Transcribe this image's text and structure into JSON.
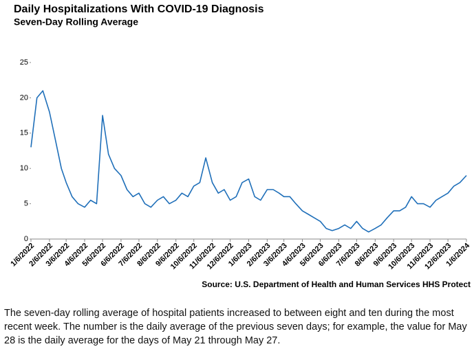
{
  "chart_data": {
    "type": "line",
    "title": "Daily Hospitalizations With COVID-19 Diagnosis",
    "subtitle": "Seven-Day Rolling Average",
    "source": "Source: U.S. Department of Health and Human Services HHS Protect",
    "note": "The seven-day rolling average of hospital patients increased to between eight and ten during the most recent week. The number is the daily average of the previous seven days; for example, the value for May 28 is the daily average for the days of May 21 through May 27.",
    "color": "#1f6fb9",
    "ylim": [
      0,
      25
    ],
    "yticks": [
      0,
      5,
      10,
      15,
      20,
      25
    ],
    "xlim": [
      "1/6/2022",
      "1/6/2024"
    ],
    "xticks": [
      "1/6/2022",
      "2/6/2022",
      "3/6/2022",
      "4/6/2022",
      "5/6/2022",
      "6/6/2022",
      "7/6/2022",
      "8/6/2022",
      "9/6/2022",
      "10/6/2022",
      "11/6/2022",
      "12/6/2022",
      "1/6/2023",
      "2/6/2023",
      "3/6/2023",
      "4/6/2023",
      "5/6/2023",
      "6/6/2023",
      "7/6/2023",
      "8/6/2023",
      "9/6/2023",
      "10/6/2023",
      "11/6/2023",
      "12/6/2023",
      "1/6/2024"
    ],
    "x": [
      "1/6/2022",
      "1/16/2022",
      "1/26/2022",
      "2/6/2022",
      "2/16/2022",
      "2/26/2022",
      "3/6/2022",
      "3/16/2022",
      "3/26/2022",
      "4/6/2022",
      "4/16/2022",
      "4/26/2022",
      "5/6/2022",
      "5/16/2022",
      "5/26/2022",
      "6/6/2022",
      "6/16/2022",
      "6/26/2022",
      "7/6/2022",
      "7/16/2022",
      "7/26/2022",
      "8/6/2022",
      "8/16/2022",
      "8/26/2022",
      "9/6/2022",
      "9/16/2022",
      "9/26/2022",
      "10/6/2022",
      "10/16/2022",
      "10/26/2022",
      "11/6/2022",
      "11/16/2022",
      "11/26/2022",
      "12/6/2022",
      "12/16/2022",
      "12/26/2022",
      "1/6/2023",
      "1/16/2023",
      "1/26/2023",
      "2/6/2023",
      "2/16/2023",
      "2/26/2023",
      "3/6/2023",
      "3/16/2023",
      "3/26/2023",
      "4/6/2023",
      "4/16/2023",
      "4/26/2023",
      "5/6/2023",
      "5/16/2023",
      "5/26/2023",
      "6/6/2023",
      "6/16/2023",
      "6/26/2023",
      "7/6/2023",
      "7/16/2023",
      "7/26/2023",
      "8/6/2023",
      "8/16/2023",
      "8/26/2023",
      "9/6/2023",
      "9/16/2023",
      "9/26/2023",
      "10/6/2023",
      "10/16/2023",
      "10/26/2023",
      "11/6/2023",
      "11/16/2023",
      "11/26/2023",
      "12/6/2023",
      "12/16/2023",
      "12/26/2023",
      "1/6/2024"
    ],
    "values": [
      13,
      20,
      21,
      18,
      14,
      10,
      8,
      6,
      5,
      4.5,
      5.5,
      5,
      17.5,
      12,
      10,
      9,
      7,
      6,
      6.5,
      5,
      4.5,
      5.5,
      6,
      5,
      5.5,
      6.5,
      6,
      7.5,
      8,
      11.5,
      8,
      6.5,
      7,
      5.5,
      6,
      8,
      8.5,
      6,
      5.5,
      7,
      7,
      6.5,
      6,
      6,
      5,
      4,
      3.5,
      3,
      2.5,
      1.5,
      1.2,
      1.5,
      2,
      1.5,
      2.5,
      1.5,
      1,
      1.5,
      2,
      3,
      4,
      4,
      4.5,
      6,
      5,
      5,
      4.5,
      5.5,
      6,
      6.5,
      7.5,
      8,
      9
    ]
  }
}
